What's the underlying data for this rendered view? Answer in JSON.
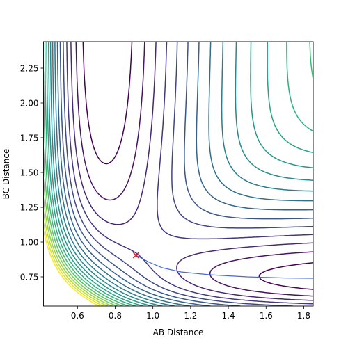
{
  "chart_data": {
    "type": "contour",
    "title": "",
    "xlabel": "AB Distance",
    "ylabel": "BC Distance",
    "xlim": [
      0.42,
      1.85
    ],
    "ylim": [
      0.54,
      2.44
    ],
    "x_ticks": [
      0.6,
      0.8,
      1.0,
      1.2,
      1.4,
      1.6,
      1.8
    ],
    "x_tick_labels": [
      "0.6",
      "0.8",
      "1.0",
      "1.2",
      "1.4",
      "1.6",
      "1.8"
    ],
    "y_ticks": [
      0.75,
      1.0,
      1.25,
      1.5,
      1.75,
      2.0,
      2.25
    ],
    "y_tick_labels": [
      "0.75",
      "1.00",
      "1.25",
      "1.50",
      "1.75",
      "2.00",
      "2.25"
    ],
    "colormap": "viridis",
    "contour_levels": 20,
    "grid": false,
    "marker": {
      "symbol": "x",
      "color": "#e8141e",
      "x": 0.91,
      "y": 0.905
    },
    "path": {
      "color": "#4169e1",
      "x": [
        0.91,
        0.98,
        1.05,
        1.15,
        1.3,
        1.5,
        1.7,
        1.85
      ],
      "y": [
        0.905,
        0.855,
        0.815,
        0.785,
        0.765,
        0.75,
        0.742,
        0.74
      ]
    }
  }
}
